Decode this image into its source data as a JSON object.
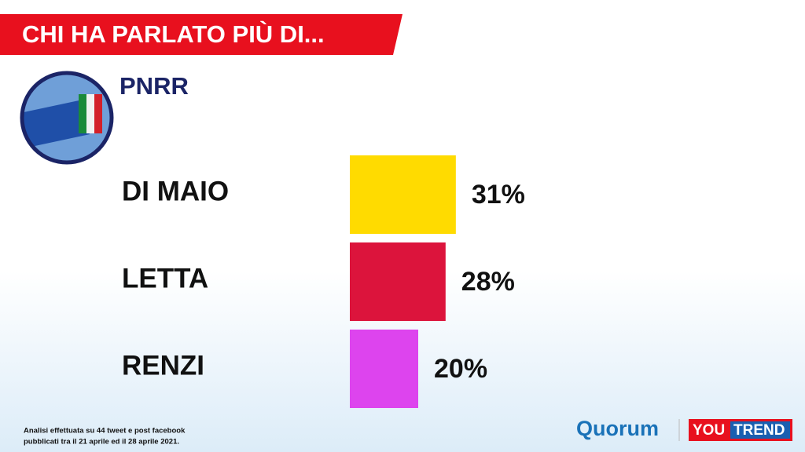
{
  "chart_data": {
    "type": "hbar",
    "title": "CHI HA PARLATO PIÙ DI...",
    "subtitle": "PNRR",
    "categories": [
      "DI MAIO",
      "LETTA",
      "RENZI"
    ],
    "values": [
      31,
      28,
      20
    ],
    "value_labels": [
      "31%",
      "28%",
      "20%"
    ],
    "colors": [
      "#ffdb00",
      "#dc143c",
      "#dd44ee"
    ]
  },
  "footnote": [
    "Analisi effettuata su 44 tweet e post facebook",
    "pubblicati tra il 21 aprile ed il 28 aprile 2021."
  ],
  "logos": {
    "quorum": "Quorum",
    "you": "YOU",
    "trend": "TREND"
  }
}
